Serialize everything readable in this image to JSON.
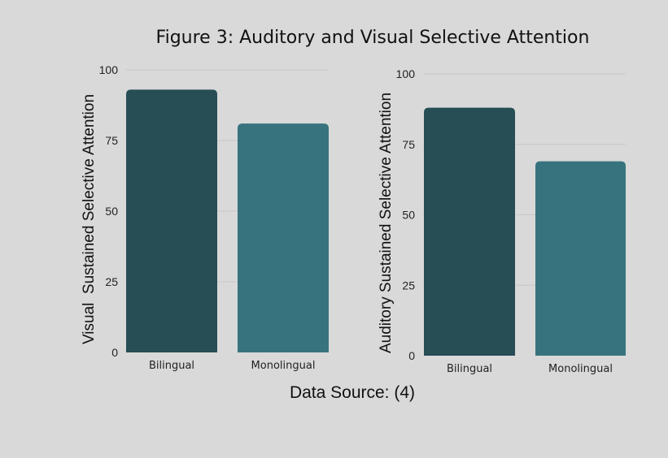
{
  "title": "Figure 3: Auditory and Visual Selective Attention",
  "source": "Data Source: (4)",
  "colors": {
    "background": "#d9d9d9",
    "bilingual": "#274d55",
    "monolingual": "#37737e",
    "grid": "#c8c8c8"
  },
  "chart_data": [
    {
      "type": "bar",
      "categories": [
        "Bilingual",
        "Monolingual"
      ],
      "values": [
        93,
        81
      ],
      "ylabel": "Visual  Sustained Selective Attention",
      "xlabel": "",
      "ylim": [
        0,
        100
      ],
      "yticks": [
        0,
        25,
        50,
        75,
        100
      ],
      "grid": true
    },
    {
      "type": "bar",
      "categories": [
        "Bilingual",
        "Monolingual"
      ],
      "values": [
        88,
        69
      ],
      "ylabel": "Auditory Sustained Selective Attention",
      "xlabel": "",
      "ylim": [
        0,
        100
      ],
      "yticks": [
        0,
        25,
        50,
        75,
        100
      ],
      "grid": true
    }
  ]
}
